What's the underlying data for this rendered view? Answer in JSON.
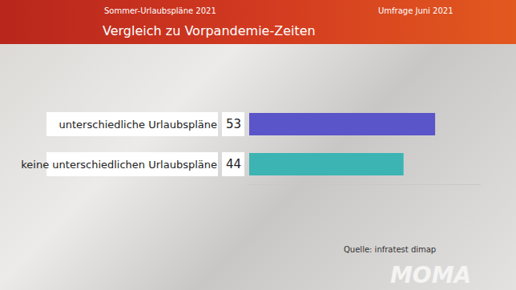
{
  "chart_data": {
    "type": "bar",
    "title": "Vergleich zu Vorpandemie-Zeiten",
    "subtitle": "Sommer-Urlaubspläne 2021",
    "annotations": [
      "Umfrage Juni 2021",
      "Quelle: infratest dimap",
      "MOMA"
    ],
    "categories": [
      "unterschiedliche Urlaubspläne",
      "keine unterschiedlichen Urlaubspläne"
    ],
    "values": [
      53,
      44
    ],
    "colors": [
      "#5a55c8",
      "#3cb4b4"
    ],
    "orientation": "horizontal",
    "xlim": [
      0,
      66
    ],
    "grid": false,
    "data_labels": true,
    "tick_labels": "y"
  }
}
